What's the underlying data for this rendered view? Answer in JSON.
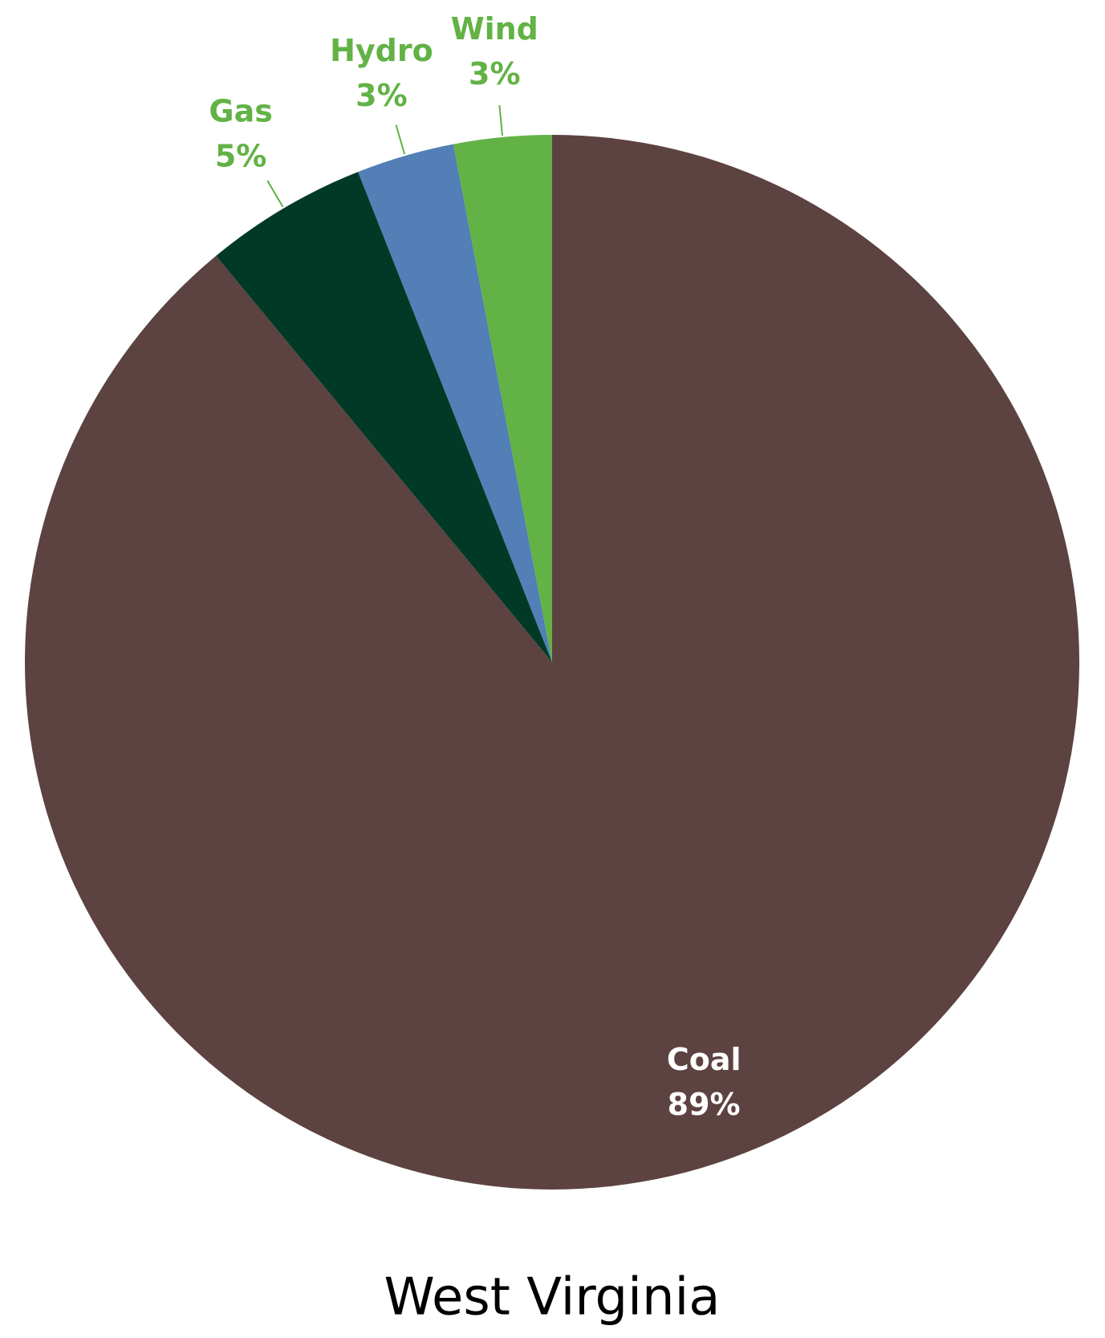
{
  "chart_data": {
    "type": "pie",
    "title": "West Virginia",
    "categories": [
      "Coal",
      "Gas",
      "Hydro",
      "Wind"
    ],
    "values": [
      89,
      5,
      3,
      3
    ],
    "value_labels": [
      "89%",
      "5%",
      "3%",
      "3%"
    ],
    "colors": [
      "#5c4240",
      "#003a26",
      "#527fb5",
      "#62b245"
    ],
    "label_color": "#62b245",
    "inside_label_color": "#ffffff"
  }
}
